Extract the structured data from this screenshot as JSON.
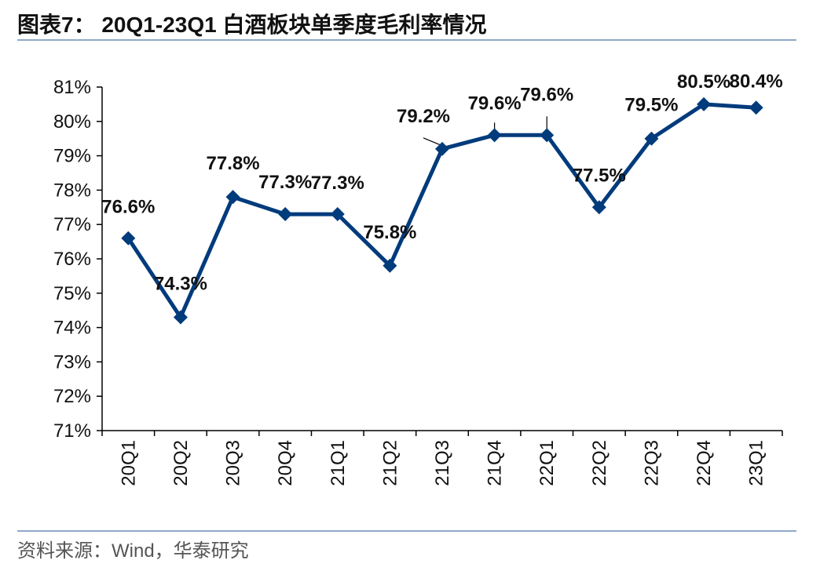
{
  "header": {
    "title": "图表7：  20Q1-23Q1 白酒板块单季度毛利率情况"
  },
  "footer": {
    "source": "资料来源：Wind，华泰研究"
  },
  "chart_data": {
    "type": "line",
    "title": "20Q1-23Q1 白酒板块单季度毛利率情况",
    "categories": [
      "20Q1",
      "20Q2",
      "20Q3",
      "20Q4",
      "21Q1",
      "21Q2",
      "21Q3",
      "21Q4",
      "22Q1",
      "22Q2",
      "22Q3",
      "22Q4",
      "23Q1"
    ],
    "values": [
      76.6,
      74.3,
      77.8,
      77.3,
      77.3,
      75.8,
      79.2,
      79.6,
      79.6,
      77.5,
      79.5,
      80.5,
      80.4
    ],
    "data_labels": [
      "76.6%",
      "74.3%",
      "77.8%",
      "77.3%",
      "77.3%",
      "75.8%",
      "79.2%",
      "79.6%",
      "79.6%",
      "77.5%",
      "79.5%",
      "80.5%",
      "80.4%"
    ],
    "yticks": [
      "71%",
      "72%",
      "73%",
      "74%",
      "75%",
      "76%",
      "77%",
      "78%",
      "79%",
      "80%",
      "81%"
    ],
    "ylim": [
      71,
      81
    ],
    "series_color": "#003b7c",
    "marker": "diamond",
    "grid": false,
    "legend": "none"
  }
}
